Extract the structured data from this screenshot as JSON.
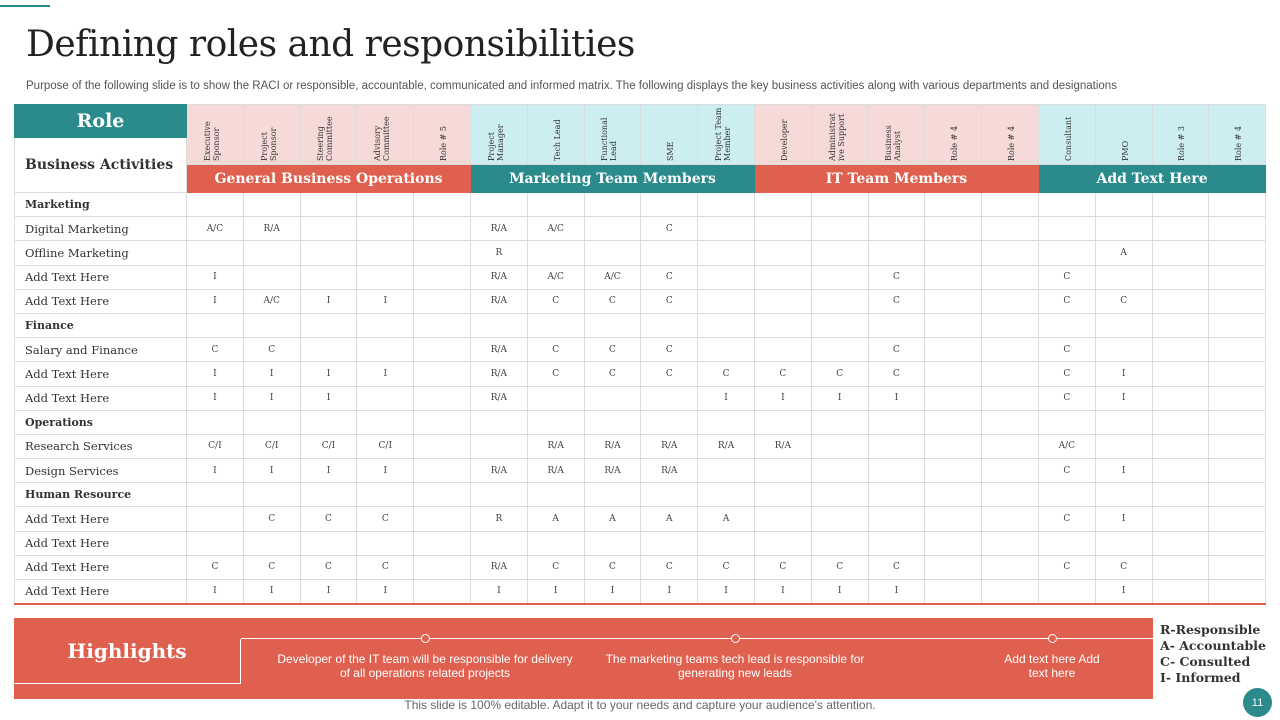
{
  "title": "Defining roles and responsibilities",
  "subtitle": "Purpose of the following slide is to show the RACI  or responsible, accountable, communicated and informed matrix. The following displays the key business activities along with various departments and designations",
  "table": {
    "role_label": "Role",
    "activities_label": "Business Activities",
    "roles": [
      "Executive Sponsor",
      "Project Sponsor",
      "Steering Committee",
      "Advisory Committee",
      "Role # 5",
      "Project Manager",
      "Tech Lead",
      "Functional Lead",
      "SME",
      "Project Team Member",
      "Developer",
      "Administrat ive Support",
      "Business Analyst",
      "Role # 4",
      "Role # 4",
      "Consultant",
      "PMO",
      "Role # 3",
      "Role # 4"
    ],
    "groups": [
      "General Business Operations",
      "Marketing Team Members",
      "IT  Team Members",
      "Add Text Here"
    ],
    "rows": [
      {
        "label": "Marketing",
        "section": true,
        "cells": [
          "",
          "",
          "",
          "",
          "",
          "",
          "",
          "",
          "",
          "",
          "",
          "",
          "",
          "",
          "",
          "",
          "",
          "",
          ""
        ]
      },
      {
        "label": "Digital Marketing",
        "section": false,
        "cells": [
          "A/C",
          "R/A",
          "",
          "",
          "",
          "R/A",
          "A/C",
          "",
          "C",
          "",
          "",
          "",
          "",
          "",
          "",
          "",
          "",
          "",
          ""
        ]
      },
      {
        "label": "Offline Marketing",
        "section": false,
        "cells": [
          "",
          "",
          "",
          "",
          "",
          "R",
          "",
          "",
          "",
          "",
          "",
          "",
          "",
          "",
          "",
          "",
          "A",
          "",
          ""
        ]
      },
      {
        "label": "Add Text Here",
        "section": false,
        "cells": [
          "I",
          "",
          "",
          "",
          "",
          "R/A",
          "A/C",
          "A/C",
          "C",
          "",
          "",
          "",
          "C",
          "",
          "",
          "C",
          "",
          "",
          ""
        ]
      },
      {
        "label": "Add Text Here",
        "section": false,
        "cells": [
          "I",
          "A/C",
          "I",
          "I",
          "",
          "R/A",
          "C",
          "C",
          "C",
          "",
          "",
          "",
          "C",
          "",
          "",
          "C",
          "C",
          "",
          ""
        ]
      },
      {
        "label": "Finance",
        "section": true,
        "cells": [
          "",
          "",
          "",
          "",
          "",
          "",
          "",
          "",
          "",
          "",
          "",
          "",
          "",
          "",
          "",
          "",
          "",
          "",
          ""
        ]
      },
      {
        "label": "Salary and Finance",
        "section": false,
        "cells": [
          "C",
          "C",
          "",
          "",
          "",
          "R/A",
          "C",
          "C",
          "C",
          "",
          "",
          "",
          "C",
          "",
          "",
          "C",
          "",
          "",
          ""
        ]
      },
      {
        "label": "Add Text Here",
        "section": false,
        "cells": [
          "I",
          "I",
          "I",
          "I",
          "",
          "R/A",
          "C",
          "C",
          "C",
          "C",
          "C",
          "C",
          "C",
          "",
          "",
          "C",
          "I",
          "",
          ""
        ]
      },
      {
        "label": "Add Text Here",
        "section": false,
        "cells": [
          "I",
          "I",
          "I",
          "",
          "",
          "R/A",
          "",
          "",
          "",
          "I",
          "I",
          "I",
          "I",
          "",
          "",
          "C",
          "I",
          "",
          ""
        ]
      },
      {
        "label": "Operations",
        "section": true,
        "cells": [
          "",
          "",
          "",
          "",
          "",
          "",
          "",
          "",
          "",
          "",
          "",
          "",
          "",
          "",
          "",
          "",
          "",
          "",
          ""
        ]
      },
      {
        "label": "Research Services",
        "section": false,
        "cells": [
          "C/I",
          "C/I",
          "C/I",
          "C/I",
          "",
          "",
          "R/A",
          "R/A",
          "R/A",
          "R/A",
          "R/A",
          "",
          "",
          "",
          "",
          "A/C",
          "",
          "",
          ""
        ]
      },
      {
        "label": "Design Services",
        "section": false,
        "cells": [
          "I",
          "I",
          "I",
          "I",
          "",
          "R/A",
          "R/A",
          "R/A",
          "R/A",
          "",
          "",
          "",
          "",
          "",
          "",
          "C",
          "I",
          "",
          ""
        ]
      },
      {
        "label": "Human Resource",
        "section": true,
        "cells": [
          "",
          "",
          "",
          "",
          "",
          "",
          "",
          "",
          "",
          "",
          "",
          "",
          "",
          "",
          "",
          "",
          "",
          "",
          ""
        ]
      },
      {
        "label": "Add Text Here",
        "section": false,
        "cells": [
          "",
          "C",
          "C",
          "C",
          "",
          "R",
          "A",
          "A",
          "A",
          "A",
          "",
          "",
          "",
          "",
          "",
          "C",
          "I",
          "",
          ""
        ]
      },
      {
        "label": "Add Text Here",
        "section": false,
        "cells": [
          "",
          "",
          "",
          "",
          "",
          "",
          "",
          "",
          "",
          "",
          "",
          "",
          "",
          "",
          "",
          "",
          "",
          "",
          ""
        ]
      },
      {
        "label": "Add Text Here",
        "section": false,
        "cells": [
          "C",
          "C",
          "C",
          "C",
          "",
          "R/A",
          "C",
          "C",
          "C",
          "C",
          "C",
          "C",
          "C",
          "",
          "",
          "C",
          "C",
          "",
          ""
        ]
      },
      {
        "label": "Add Text Here",
        "section": false,
        "cells": [
          "I",
          "I",
          "I",
          "I",
          "",
          "I",
          "I",
          "I",
          "I",
          "I",
          "I",
          "I",
          "I",
          "",
          "",
          "",
          "I",
          "",
          ""
        ]
      }
    ]
  },
  "highlights": {
    "label": "Highlights",
    "items": [
      "Developer of the IT team will be responsible for delivery of all operations related projects",
      "The marketing teams tech lead is responsible for generating new leads",
      "Add text here Add text here"
    ]
  },
  "legend": [
    "R-Responsible",
    "A- Accountable",
    "C- Consulted",
    "I- Informed"
  ],
  "footer": "This slide is 100% editable. Adapt it to your needs and capture your audience's attention.",
  "page_number": "11",
  "colors": {
    "teal": "#2a8a8c",
    "coral": "#e0604f",
    "pink": "#f6dad8",
    "cyan": "#cdeef0"
  }
}
